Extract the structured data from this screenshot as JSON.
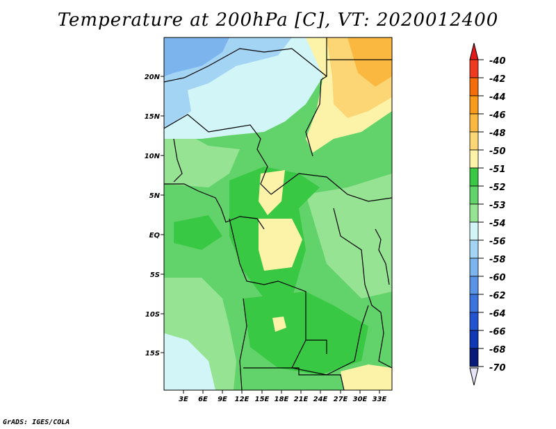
{
  "header": {
    "title": "Temperature at 200hPa [C], VT: 2020012400"
  },
  "footer": {
    "credit": "GrADS: IGES/COLA"
  },
  "map": {
    "lat_ticks": [
      "20N",
      "15N",
      "10N",
      "5N",
      "EQ",
      "5S",
      "10S",
      "15S"
    ],
    "lon_ticks": [
      "3E",
      "6E",
      "9E",
      "12E",
      "15E",
      "18E",
      "21E",
      "24E",
      "27E",
      "30E",
      "33E"
    ]
  },
  "colorbar": {
    "labels": [
      "-40",
      "-42",
      "-44",
      "-46",
      "-48",
      "-50",
      "-51",
      "-52",
      "-53",
      "-54",
      "-56",
      "-58",
      "-60",
      "-62",
      "-64",
      "-66",
      "-68",
      "-70"
    ],
    "colors": [
      "#e31a1c",
      "#f03b20",
      "#f46d0a",
      "#f89a1a",
      "#fbb840",
      "#fcd575",
      "#fdf3a8",
      "#38c843",
      "#62d36a",
      "#96e394",
      "#d2f5f8",
      "#a4d4f4",
      "#7cb4ee",
      "#5a94e6",
      "#3c74de",
      "#2254d0",
      "#1038b4",
      "#0a1a7a",
      "#e8e4f8"
    ],
    "endcaps": {
      "top": "#e31a1c",
      "bottom": "#e8e4f8"
    }
  }
}
